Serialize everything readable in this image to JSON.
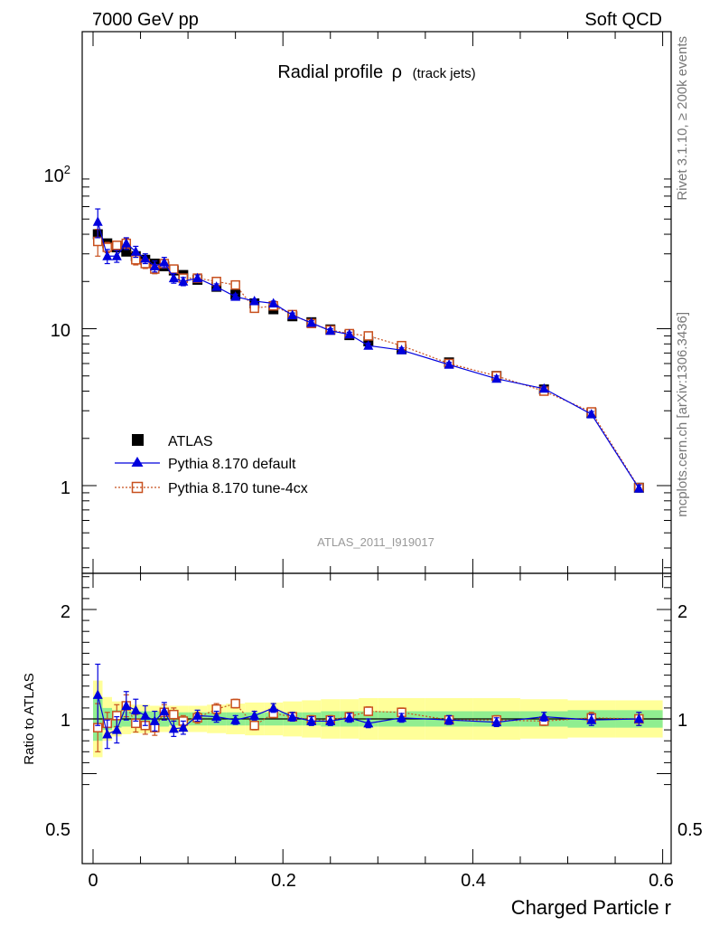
{
  "header": {
    "left": "7000 GeV pp",
    "right": "Soft QCD"
  },
  "side_labels": {
    "rivet": "Rivet 3.1.10, ≥ 200k events",
    "mcplots": "mcplots.cern.ch [arXiv:1306.3436]"
  },
  "analysis_id": "ATLAS_2011_I919017",
  "chart_data": [
    {
      "type": "scatter",
      "title": "Radial profile",
      "title_symbol": "ρ",
      "title_sub": "(track jets)",
      "xlabel": "Charged Particle r",
      "ylabel": "",
      "yscale": "log",
      "xlim": [
        -0.01,
        0.6
      ],
      "ylim": [
        0.3,
        800
      ],
      "ytick_labels": [
        "1",
        "10",
        "10"
      ],
      "ytick_exponent": "2",
      "legend_position": "lower-left",
      "colors": {
        "ATLAS": "#000000",
        "Pythia 8.170 default": "#0000dd",
        "Pythia 8.170 tune-4cx": "#c8501e"
      },
      "x": [
        0.005,
        0.015,
        0.025,
        0.035,
        0.045,
        0.055,
        0.065,
        0.075,
        0.085,
        0.095,
        0.11,
        0.13,
        0.15,
        0.17,
        0.19,
        0.21,
        0.23,
        0.25,
        0.27,
        0.29,
        0.325,
        0.375,
        0.425,
        0.475,
        0.525,
        0.575
      ],
      "series": [
        {
          "name": "ATLAS",
          "values": [
            40,
            35,
            33,
            31,
            29,
            27.5,
            26,
            25,
            23.5,
            22,
            20.5,
            18.5,
            16.5,
            14.5,
            13.3,
            12.0,
            11.0,
            9.9,
            9.1,
            8.3,
            7.4,
            6.1,
            5.0,
            4.1,
            2.9,
            0.97
          ]
        },
        {
          "name": "Pythia 8.170 default",
          "values": [
            48,
            29,
            29,
            35,
            31,
            28,
            25,
            26.5,
            21,
            20,
            21,
            18.5,
            16,
            15,
            14.5,
            12.2,
            10.9,
            9.7,
            9.2,
            7.8,
            7.3,
            5.9,
            4.8,
            4.15,
            2.85,
            0.96
          ],
          "errors": [
            10,
            3,
            2.5,
            3,
            2.5,
            2,
            2,
            2,
            1.5,
            1.2,
            1.0,
            0.8,
            0.6,
            0.5,
            0.5,
            0.4,
            0.35,
            0.3,
            0.3,
            0.3,
            0.25,
            0.2,
            0.2,
            0.15,
            0.12,
            0.05
          ]
        },
        {
          "name": "Pythia 8.170 tune-4cx",
          "values": [
            36,
            33,
            34,
            35,
            27.5,
            26,
            24,
            26,
            24,
            21,
            21,
            20,
            19,
            13.5,
            14,
            12.3,
            10.8,
            9.8,
            9.3,
            9.0,
            7.8,
            6.0,
            5.0,
            4.0,
            2.95,
            0.97
          ],
          "errors": [
            7,
            2.5,
            2,
            2.5,
            2,
            1.8,
            1.6,
            1.6,
            1.4,
            1.1,
            0.9,
            0.8,
            0.7,
            0.5,
            0.5,
            0.4,
            0.35,
            0.3,
            0.3,
            0.3,
            0.25,
            0.2,
            0.2,
            0.15,
            0.12,
            0.05
          ]
        }
      ]
    },
    {
      "type": "scatter",
      "title": "",
      "xlabel": "Charged Particle r",
      "ylabel": "Ratio to ATLAS",
      "xlim": [
        -0.01,
        0.6
      ],
      "ylim": [
        0.4,
        2.3
      ],
      "yticks": [
        0.5,
        1,
        2
      ],
      "ytick_labels": [
        "0.5",
        "1",
        "2"
      ],
      "xticks": [
        0,
        0.2,
        0.4,
        0.6
      ],
      "xtick_labels": [
        "0",
        "0.2",
        "0.4",
        "0.6"
      ],
      "band_colors": {
        "inner": "#90ee90",
        "outer": "#ffff99"
      },
      "bands": {
        "x_edges": [
          0,
          0.01,
          0.02,
          0.03,
          0.04,
          0.05,
          0.06,
          0.07,
          0.08,
          0.09,
          0.1,
          0.12,
          0.14,
          0.16,
          0.18,
          0.2,
          0.22,
          0.24,
          0.26,
          0.28,
          0.3,
          0.35,
          0.4,
          0.45,
          0.5,
          0.55,
          0.6
        ],
        "inner_half": [
          0.2,
          0.1,
          0.08,
          0.07,
          0.07,
          0.07,
          0.07,
          0.07,
          0.06,
          0.06,
          0.06,
          0.06,
          0.06,
          0.06,
          0.06,
          0.06,
          0.06,
          0.07,
          0.07,
          0.07,
          0.07,
          0.07,
          0.07,
          0.07,
          0.08,
          0.08
        ],
        "outer_half": [
          0.35,
          0.2,
          0.16,
          0.14,
          0.13,
          0.13,
          0.12,
          0.12,
          0.12,
          0.12,
          0.12,
          0.13,
          0.14,
          0.15,
          0.15,
          0.16,
          0.17,
          0.18,
          0.18,
          0.19,
          0.19,
          0.19,
          0.19,
          0.18,
          0.17,
          0.17
        ]
      },
      "x": [
        0.005,
        0.015,
        0.025,
        0.035,
        0.045,
        0.055,
        0.065,
        0.075,
        0.085,
        0.095,
        0.11,
        0.13,
        0.15,
        0.17,
        0.19,
        0.21,
        0.23,
        0.25,
        0.27,
        0.29,
        0.325,
        0.375,
        0.425,
        0.475,
        0.525,
        0.575
      ],
      "series": [
        {
          "name": "Pythia 8.170 default",
          "values": [
            1.22,
            0.86,
            0.9,
            1.12,
            1.08,
            1.03,
            0.98,
            1.07,
            0.91,
            0.92,
            1.03,
            1.02,
            0.99,
            1.03,
            1.1,
            1.02,
            0.98,
            0.98,
            1.01,
            0.96,
            1.01,
            0.99,
            0.97,
            1.02,
            0.99,
            1.0
          ],
          "errors": [
            0.28,
            0.13,
            0.12,
            0.13,
            0.1,
            0.09,
            0.09,
            0.08,
            0.07,
            0.06,
            0.05,
            0.05,
            0.04,
            0.04,
            0.04,
            0.04,
            0.04,
            0.04,
            0.04,
            0.04,
            0.04,
            0.04,
            0.04,
            0.04,
            0.05,
            0.06
          ]
        },
        {
          "name": "Pythia 8.170 tune-4cx",
          "values": [
            0.92,
            0.96,
            1.03,
            1.12,
            0.96,
            0.94,
            0.92,
            1.06,
            1.04,
            0.98,
            1.01,
            1.09,
            1.14,
            0.94,
            1.05,
            1.02,
            0.99,
            0.99,
            1.02,
            1.07,
            1.06,
            0.99,
            0.99,
            0.98,
            1.01,
            1.0
          ],
          "errors": [
            0.22,
            0.1,
            0.1,
            0.1,
            0.08,
            0.08,
            0.07,
            0.07,
            0.06,
            0.05,
            0.05,
            0.05,
            0.04,
            0.04,
            0.04,
            0.04,
            0.04,
            0.04,
            0.04,
            0.04,
            0.04,
            0.04,
            0.04,
            0.04,
            0.05,
            0.06
          ]
        }
      ]
    }
  ]
}
